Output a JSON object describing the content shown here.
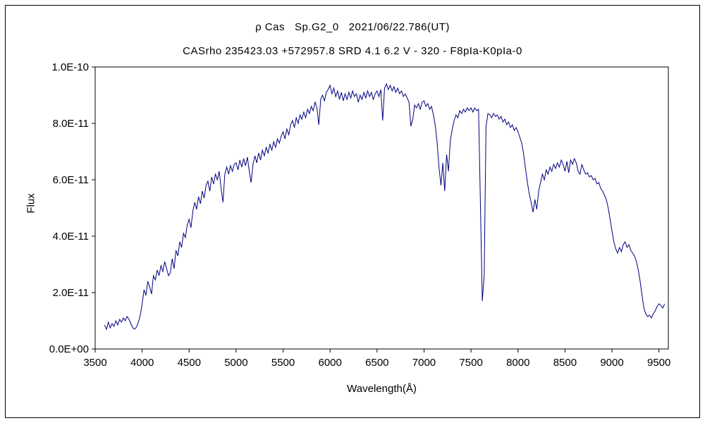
{
  "titles": {
    "line1": "ρ Cas   Sp.G2_0   2021/06/22.786(UT)",
    "line2": "CASrho 235423.03 +572957.8 SRD 4.1 6.2 V - 320 - F8pIa-K0pIa-0"
  },
  "axes": {
    "x_label": "Wavelength(Å)",
    "y_label": "Flux",
    "x_ticks": [
      3500,
      4000,
      4500,
      5000,
      5500,
      6000,
      6500,
      7000,
      7500,
      8000,
      8500,
      9000,
      9500
    ],
    "y_ticks": [
      {
        "value": 0,
        "label": "0.0E+00"
      },
      {
        "value": 2e-11,
        "label": "2.0E-11"
      },
      {
        "value": 4e-11,
        "label": "4.0E-11"
      },
      {
        "value": 6e-11,
        "label": "6.0E-11"
      },
      {
        "value": 8e-11,
        "label": "8.0E-11"
      },
      {
        "value": 1e-10,
        "label": "1.0E-10"
      }
    ]
  },
  "colors": {
    "line": "#000080",
    "axis": "#000000",
    "background": "#ffffff"
  },
  "chart_data": {
    "type": "line",
    "title": "ρ Cas   Sp.G2_0   2021/06/22.786(UT)",
    "subtitle": "CASrho 235423.03 +572957.8 SRD 4.1 6.2 V - 320 - F8pIa-K0pIa-0",
    "xlabel": "Wavelength(Å)",
    "ylabel": "Flux",
    "xlim": [
      3500,
      9600
    ],
    "ylim": [
      0,
      1e-10
    ],
    "grid": false,
    "legend": "none",
    "line_color": "#000080",
    "flux_scale": 1e-11,
    "x_start": 3600,
    "x_step": 20,
    "flux_e11": [
      0.85,
      0.7,
      0.95,
      0.75,
      0.9,
      0.8,
      1.0,
      0.85,
      1.05,
      0.95,
      1.1,
      1.0,
      1.15,
      1.05,
      0.9,
      0.75,
      0.7,
      0.78,
      0.95,
      1.2,
      1.6,
      2.1,
      1.9,
      2.4,
      2.2,
      1.95,
      2.6,
      2.45,
      2.8,
      2.6,
      2.95,
      2.75,
      3.1,
      2.85,
      2.6,
      2.7,
      3.2,
      2.85,
      3.5,
      3.3,
      3.8,
      3.6,
      4.1,
      3.95,
      4.4,
      4.6,
      4.3,
      4.9,
      5.2,
      4.95,
      5.4,
      5.15,
      5.6,
      5.35,
      5.8,
      5.95,
      5.6,
      6.1,
      5.85,
      6.2,
      6.0,
      6.3,
      5.7,
      5.2,
      6.2,
      6.45,
      6.2,
      6.5,
      6.3,
      6.55,
      6.6,
      6.35,
      6.7,
      6.45,
      6.75,
      6.5,
      6.8,
      6.3,
      5.9,
      6.55,
      6.85,
      6.6,
      6.95,
      6.7,
      7.05,
      6.85,
      7.15,
      6.95,
      7.25,
      7.05,
      7.35,
      7.15,
      7.45,
      7.3,
      7.55,
      7.7,
      7.45,
      7.8,
      7.6,
      7.95,
      8.1,
      7.85,
      8.2,
      8.0,
      8.3,
      8.15,
      8.4,
      8.2,
      8.5,
      8.35,
      8.6,
      8.45,
      8.75,
      8.55,
      7.95,
      8.85,
      9.0,
      8.8,
      9.1,
      9.2,
      9.35,
      9.05,
      9.25,
      8.95,
      9.15,
      8.85,
      9.1,
      8.8,
      9.05,
      8.85,
      9.1,
      8.9,
      9.15,
      8.95,
      9.05,
      8.75,
      9.0,
      8.85,
      9.1,
      8.9,
      9.15,
      8.95,
      9.1,
      8.85,
      9.05,
      9.15,
      8.95,
      9.2,
      8.1,
      9.25,
      9.4,
      9.2,
      9.35,
      9.15,
      9.3,
      9.1,
      9.25,
      9.05,
      9.15,
      8.95,
      9.05,
      8.9,
      8.75,
      7.9,
      8.15,
      8.65,
      8.55,
      8.7,
      8.5,
      8.75,
      8.8,
      8.6,
      8.7,
      8.5,
      8.6,
      8.3,
      7.9,
      7.3,
      6.4,
      5.8,
      6.6,
      5.6,
      6.9,
      6.3,
      7.4,
      7.8,
      8.1,
      8.3,
      8.2,
      8.45,
      8.35,
      8.5,
      8.4,
      8.55,
      8.45,
      8.55,
      8.4,
      8.55,
      8.45,
      8.5,
      5.2,
      1.7,
      2.6,
      7.9,
      8.35,
      8.3,
      8.2,
      8.35,
      8.25,
      8.3,
      8.15,
      8.25,
      8.05,
      8.15,
      7.95,
      8.05,
      7.85,
      7.95,
      7.75,
      7.85,
      7.7,
      7.5,
      7.3,
      6.9,
      6.4,
      5.9,
      5.5,
      5.2,
      4.85,
      5.3,
      4.95,
      5.6,
      5.9,
      6.2,
      6.0,
      6.35,
      6.2,
      6.45,
      6.3,
      6.55,
      6.4,
      6.6,
      6.45,
      6.7,
      6.55,
      6.3,
      6.65,
      6.25,
      6.7,
      6.55,
      6.75,
      6.6,
      6.3,
      6.2,
      6.55,
      6.35,
      6.2,
      6.25,
      6.1,
      6.15,
      6.0,
      6.05,
      5.85,
      5.9,
      5.7,
      5.6,
      5.45,
      5.3,
      5.0,
      4.6,
      4.2,
      3.8,
      3.55,
      3.4,
      3.6,
      3.45,
      3.7,
      3.8,
      3.6,
      3.7,
      3.5,
      3.4,
      3.3,
      3.1,
      2.8,
      2.4,
      1.9,
      1.45,
      1.25,
      1.15,
      1.2,
      1.1,
      1.25,
      1.35,
      1.5,
      1.6,
      1.55,
      1.45,
      1.6
    ]
  }
}
